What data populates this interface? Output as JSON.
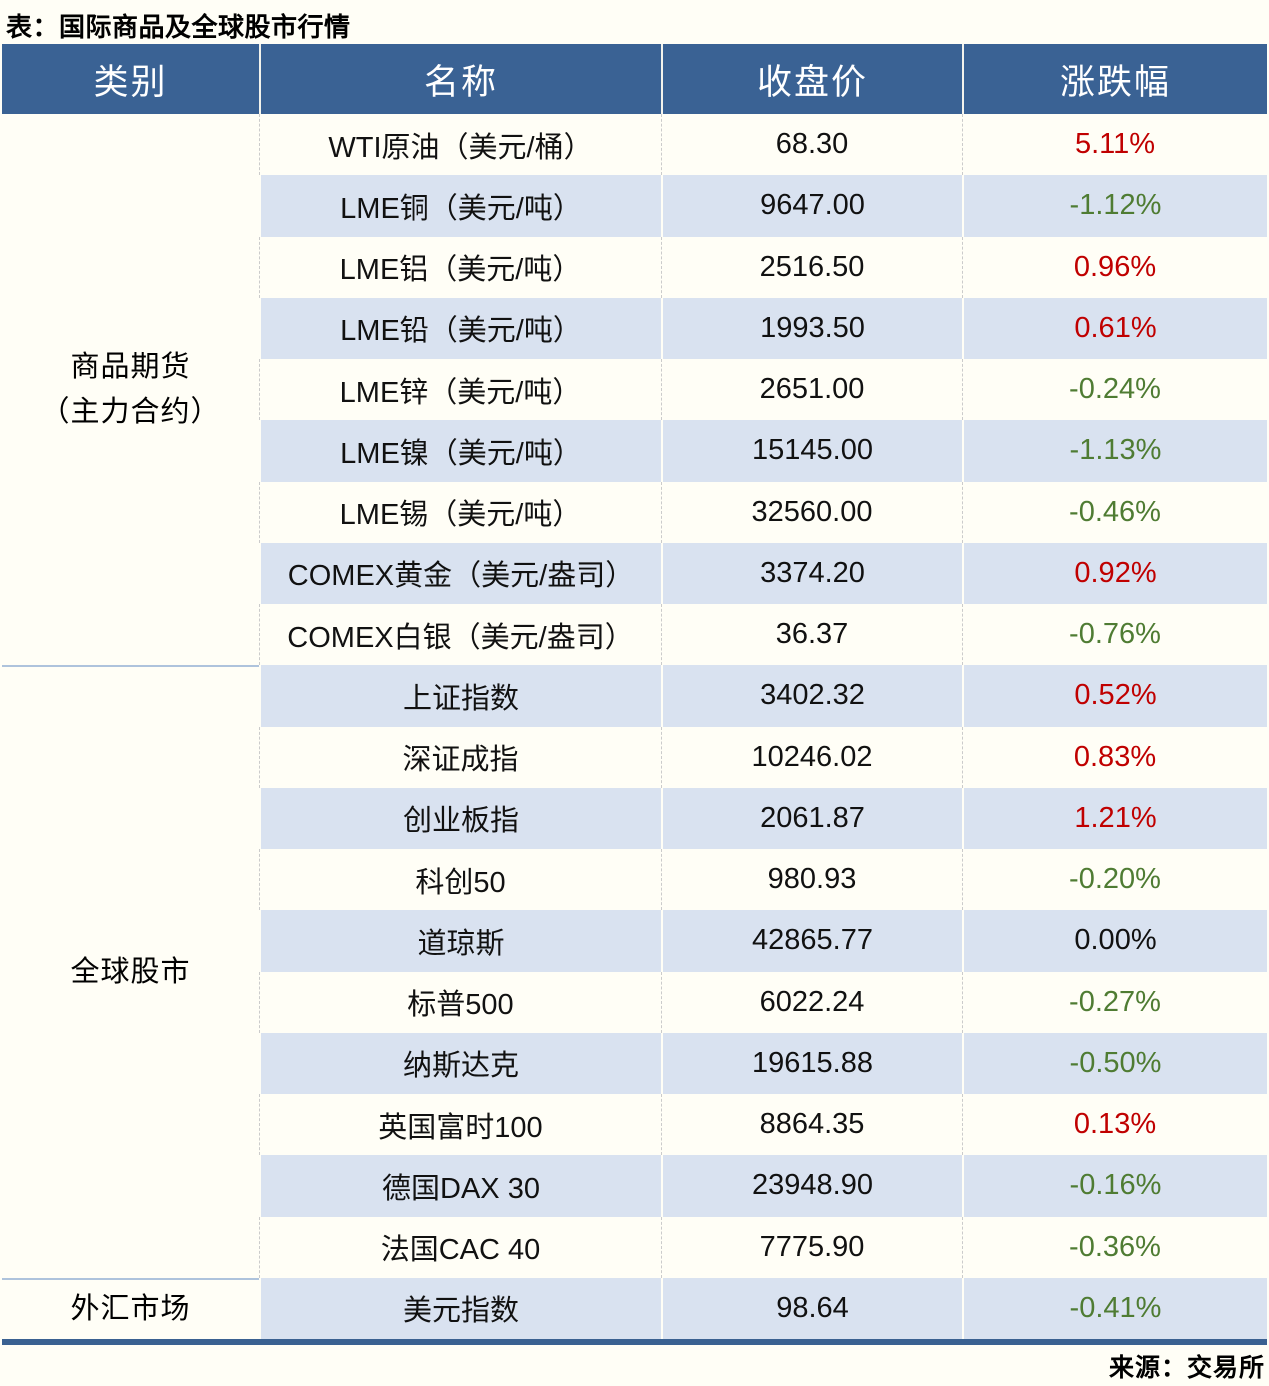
{
  "title": "表：国际商品及全球股市行情",
  "source": "来源：交易所",
  "colors": {
    "header_bg": "#3A6294",
    "stripe_bg": "#D9E2F0",
    "up_red": "#C00000",
    "down_green": "#4F7C33",
    "flat_black": "#111111",
    "bottom_border": "#3A6191",
    "page_bg": "#FFFEF6"
  },
  "table": {
    "headers": [
      "类别",
      "名称",
      "收盘价",
      "涨跌幅"
    ],
    "sections": [
      {
        "label": "商品期货（主力合约）",
        "label_lines": [
          "商品期货",
          "（主力合约）"
        ],
        "rows": [
          {
            "name": "WTI原油（美元/桶）",
            "close": "68.30",
            "change": "5.11%",
            "direction": "up"
          },
          {
            "name": "LME铜（美元/吨）",
            "close": "9647.00",
            "change": "-1.12%",
            "direction": "down"
          },
          {
            "name": "LME铝（美元/吨）",
            "close": "2516.50",
            "change": "0.96%",
            "direction": "up"
          },
          {
            "name": "LME铅（美元/吨）",
            "close": "1993.50",
            "change": "0.61%",
            "direction": "up"
          },
          {
            "name": "LME锌（美元/吨）",
            "close": "2651.00",
            "change": "-0.24%",
            "direction": "down"
          },
          {
            "name": "LME镍（美元/吨）",
            "close": "15145.00",
            "change": "-1.13%",
            "direction": "down"
          },
          {
            "name": "LME锡（美元/吨）",
            "close": "32560.00",
            "change": "-0.46%",
            "direction": "down"
          },
          {
            "name": "COMEX黄金（美元/盎司）",
            "close": "3374.20",
            "change": "0.92%",
            "direction": "up"
          },
          {
            "name": "COMEX白银（美元/盎司）",
            "close": "36.37",
            "change": "-0.76%",
            "direction": "down"
          }
        ]
      },
      {
        "label": "全球股市",
        "label_lines": [
          "全球股市"
        ],
        "rows": [
          {
            "name": "上证指数",
            "close": "3402.32",
            "change": "0.52%",
            "direction": "up"
          },
          {
            "name": "深证成指",
            "close": "10246.02",
            "change": "0.83%",
            "direction": "up"
          },
          {
            "name": "创业板指",
            "close": "2061.87",
            "change": "1.21%",
            "direction": "up"
          },
          {
            "name": "科创50",
            "close": "980.93",
            "change": "-0.20%",
            "direction": "down"
          },
          {
            "name": "道琼斯",
            "close": "42865.77",
            "change": "0.00%",
            "direction": "flat"
          },
          {
            "name": "标普500",
            "close": "6022.24",
            "change": "-0.27%",
            "direction": "down"
          },
          {
            "name": "纳斯达克",
            "close": "19615.88",
            "change": "-0.50%",
            "direction": "down"
          },
          {
            "name": "英国富时100",
            "close": "8864.35",
            "change": "0.13%",
            "direction": "up"
          },
          {
            "name": "德国DAX 30",
            "close": "23948.90",
            "change": "-0.16%",
            "direction": "down"
          },
          {
            "name": "法国CAC 40",
            "close": "7775.90",
            "change": "-0.36%",
            "direction": "down"
          }
        ]
      },
      {
        "label": "外汇市场",
        "label_lines": [
          "外汇市场"
        ],
        "rows": [
          {
            "name": "美元指数",
            "close": "98.64",
            "change": "-0.41%",
            "direction": "down"
          }
        ]
      }
    ]
  },
  "chart_data": {
    "type": "table",
    "title": "表：国际商品及全球股市行情",
    "columns": [
      "类别",
      "名称",
      "收盘价",
      "涨跌幅"
    ],
    "rows": [
      [
        "商品期货（主力合约）",
        "WTI原油（美元/桶）",
        68.3,
        "5.11%"
      ],
      [
        "商品期货（主力合约）",
        "LME铜（美元/吨）",
        9647.0,
        "-1.12%"
      ],
      [
        "商品期货（主力合约）",
        "LME铝（美元/吨）",
        2516.5,
        "0.96%"
      ],
      [
        "商品期货（主力合约）",
        "LME铅（美元/吨）",
        1993.5,
        "0.61%"
      ],
      [
        "商品期货（主力合约）",
        "LME锌（美元/吨）",
        2651.0,
        "-0.24%"
      ],
      [
        "商品期货（主力合约）",
        "LME镍（美元/吨）",
        15145.0,
        "-1.13%"
      ],
      [
        "商品期货（主力合约）",
        "LME锡（美元/吨）",
        32560.0,
        "-0.46%"
      ],
      [
        "商品期货（主力合约）",
        "COMEX黄金（美元/盎司）",
        3374.2,
        "0.92%"
      ],
      [
        "商品期货（主力合约）",
        "COMEX白银（美元/盎司）",
        36.37,
        "-0.76%"
      ],
      [
        "全球股市",
        "上证指数",
        3402.32,
        "0.52%"
      ],
      [
        "全球股市",
        "深证成指",
        10246.02,
        "0.83%"
      ],
      [
        "全球股市",
        "创业板指",
        2061.87,
        "1.21%"
      ],
      [
        "全球股市",
        "科创50",
        980.93,
        "-0.20%"
      ],
      [
        "全球股市",
        "道琼斯",
        42865.77,
        "0.00%"
      ],
      [
        "全球股市",
        "标普500",
        6022.24,
        "-0.27%"
      ],
      [
        "全球股市",
        "纳斯达克",
        19615.88,
        "-0.50%"
      ],
      [
        "全球股市",
        "英国富时100",
        8864.35,
        "0.13%"
      ],
      [
        "全球股市",
        "德国DAX 30",
        23948.9,
        "-0.16%"
      ],
      [
        "全球股市",
        "法国CAC 40",
        7775.9,
        "-0.36%"
      ],
      [
        "外汇市场",
        "美元指数",
        98.64,
        "-0.41%"
      ]
    ],
    "source_note": "来源：交易所"
  }
}
